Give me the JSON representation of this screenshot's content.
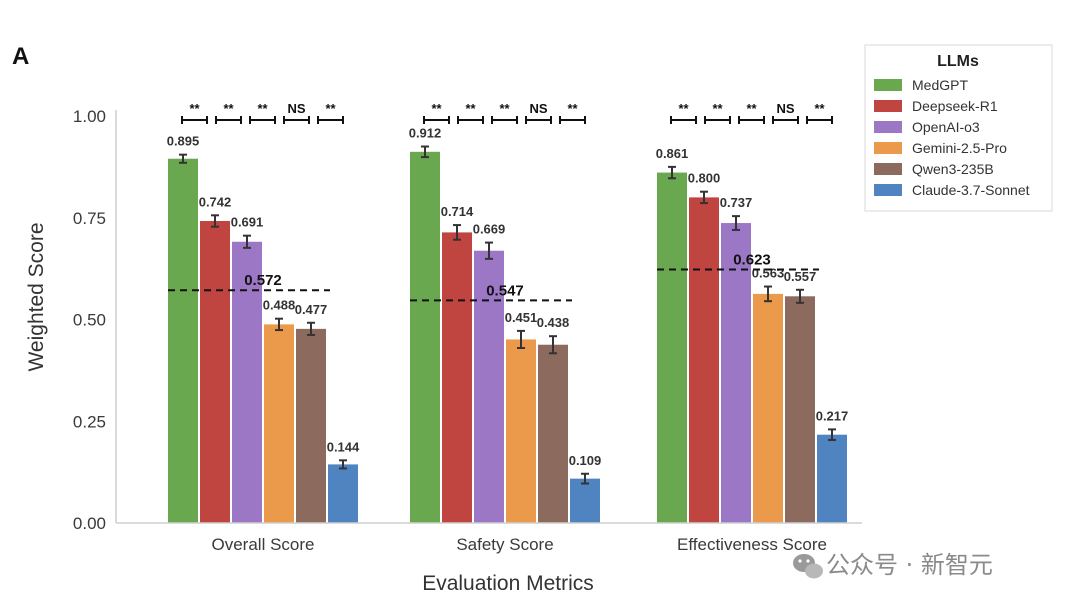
{
  "panel_label": "A",
  "watermark": "公众号 · 新智元",
  "chart_data": {
    "type": "bar",
    "title": "",
    "xlabel": "Evaluation Metrics",
    "ylabel": "Weighted Score",
    "ylim": [
      0,
      1.0
    ],
    "yticks": [
      "0.00",
      "0.25",
      "0.50",
      "0.75",
      "1.00"
    ],
    "grid": false,
    "legend_position": "top-right",
    "legend_title": "LLMs",
    "categories": [
      "Overall Score",
      "Safety Score",
      "Effectiveness Score"
    ],
    "series": [
      {
        "name": "MedGPT",
        "color": "#6aa84f",
        "values": [
          0.895,
          0.912,
          0.861
        ],
        "errors": [
          0.01,
          0.013,
          0.014
        ]
      },
      {
        "name": "Deepseek-R1",
        "color": "#c0443f",
        "values": [
          0.742,
          0.714,
          0.8
        ],
        "errors": [
          0.014,
          0.018,
          0.014
        ]
      },
      {
        "name": "OpenAI-o3",
        "color": "#9b77c6",
        "values": [
          0.691,
          0.669,
          0.737
        ],
        "errors": [
          0.015,
          0.02,
          0.017
        ]
      },
      {
        "name": "Gemini-2.5-Pro",
        "color": "#ea9a4a",
        "values": [
          0.488,
          0.451,
          0.563
        ],
        "errors": [
          0.014,
          0.021,
          0.018
        ]
      },
      {
        "name": "Qwen3-235B",
        "color": "#8c6a5e",
        "values": [
          0.477,
          0.438,
          0.557
        ],
        "errors": [
          0.015,
          0.021,
          0.016
        ]
      },
      {
        "name": "Claude-3.7-Sonnet",
        "color": "#4f84c0",
        "values": [
          0.144,
          0.109,
          0.217
        ],
        "errors": [
          0.01,
          0.012,
          0.013
        ]
      }
    ],
    "value_labels": [
      [
        "0.895",
        "0.742",
        "0.691",
        "0.488",
        "0.477",
        "0.144"
      ],
      [
        "0.912",
        "0.714",
        "0.669",
        "0.451",
        "0.438",
        "0.109"
      ],
      [
        "0.861",
        "0.800",
        "0.737",
        "0.563",
        "0.557",
        "0.217"
      ]
    ],
    "means": [
      0.572,
      0.547,
      0.623
    ],
    "mean_labels": [
      "0.572",
      "0.547",
      "0.623"
    ],
    "significance": [
      [
        "**",
        "**",
        "**",
        "NS",
        "**"
      ],
      [
        "**",
        "**",
        "**",
        "NS",
        "**"
      ],
      [
        "**",
        "**",
        "**",
        "NS",
        "**"
      ]
    ]
  }
}
